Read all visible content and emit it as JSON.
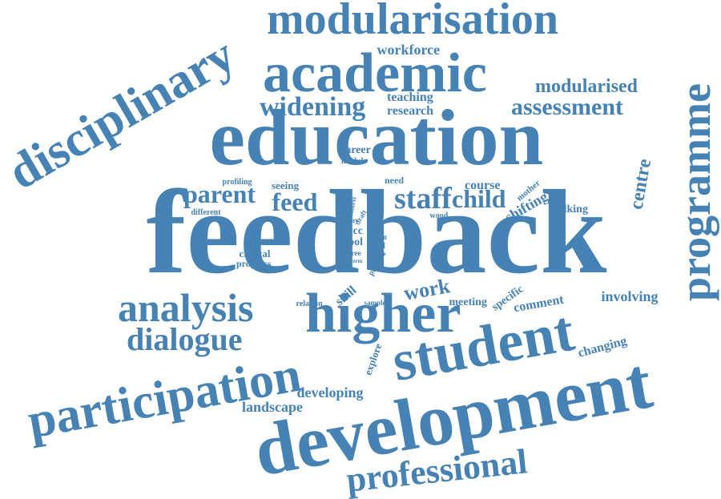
{
  "color": "#4682b4",
  "words": [
    {
      "text": "feedback"
    },
    {
      "text": "education"
    },
    {
      "text": "development"
    },
    {
      "text": "higher"
    },
    {
      "text": "student"
    },
    {
      "text": "academic"
    },
    {
      "text": "modularisation"
    },
    {
      "text": "participation"
    },
    {
      "text": "disciplinary"
    },
    {
      "text": "programme"
    },
    {
      "text": "professional"
    },
    {
      "text": "analysis"
    },
    {
      "text": "dialogue"
    },
    {
      "text": "widening"
    },
    {
      "text": "assessment"
    },
    {
      "text": "modularised"
    },
    {
      "text": "staff"
    },
    {
      "text": "parent"
    },
    {
      "text": "child"
    },
    {
      "text": "feed"
    },
    {
      "text": "work"
    },
    {
      "text": "centre"
    },
    {
      "text": "workforce"
    },
    {
      "text": "teaching"
    },
    {
      "text": "research"
    },
    {
      "text": "developing"
    },
    {
      "text": "landscape"
    },
    {
      "text": "course"
    },
    {
      "text": "career"
    },
    {
      "text": "shifting"
    },
    {
      "text": "walking"
    },
    {
      "text": "involving"
    },
    {
      "text": "comment"
    },
    {
      "text": "changing"
    },
    {
      "text": "meeting"
    },
    {
      "text": "specific"
    },
    {
      "text": "skill"
    },
    {
      "text": "explore"
    },
    {
      "text": "critical"
    },
    {
      "text": "progress"
    },
    {
      "text": "seeing"
    },
    {
      "text": "need"
    },
    {
      "text": "profiling"
    },
    {
      "text": "different"
    },
    {
      "text": "module"
    },
    {
      "text": "mother"
    },
    {
      "text": "wood"
    },
    {
      "text": "relation"
    },
    {
      "text": "sample"
    },
    {
      "text": "acc"
    },
    {
      "text": "tool"
    },
    {
      "text": "final"
    },
    {
      "text": "tree"
    },
    {
      "text": "term"
    },
    {
      "text": "pattern"
    },
    {
      "text": "way"
    },
    {
      "text": "draft"
    },
    {
      "text": "context"
    },
    {
      "text": "level"
    },
    {
      "text": "tall"
    },
    {
      "text": "more"
    },
    {
      "text": "aim"
    }
  ]
}
